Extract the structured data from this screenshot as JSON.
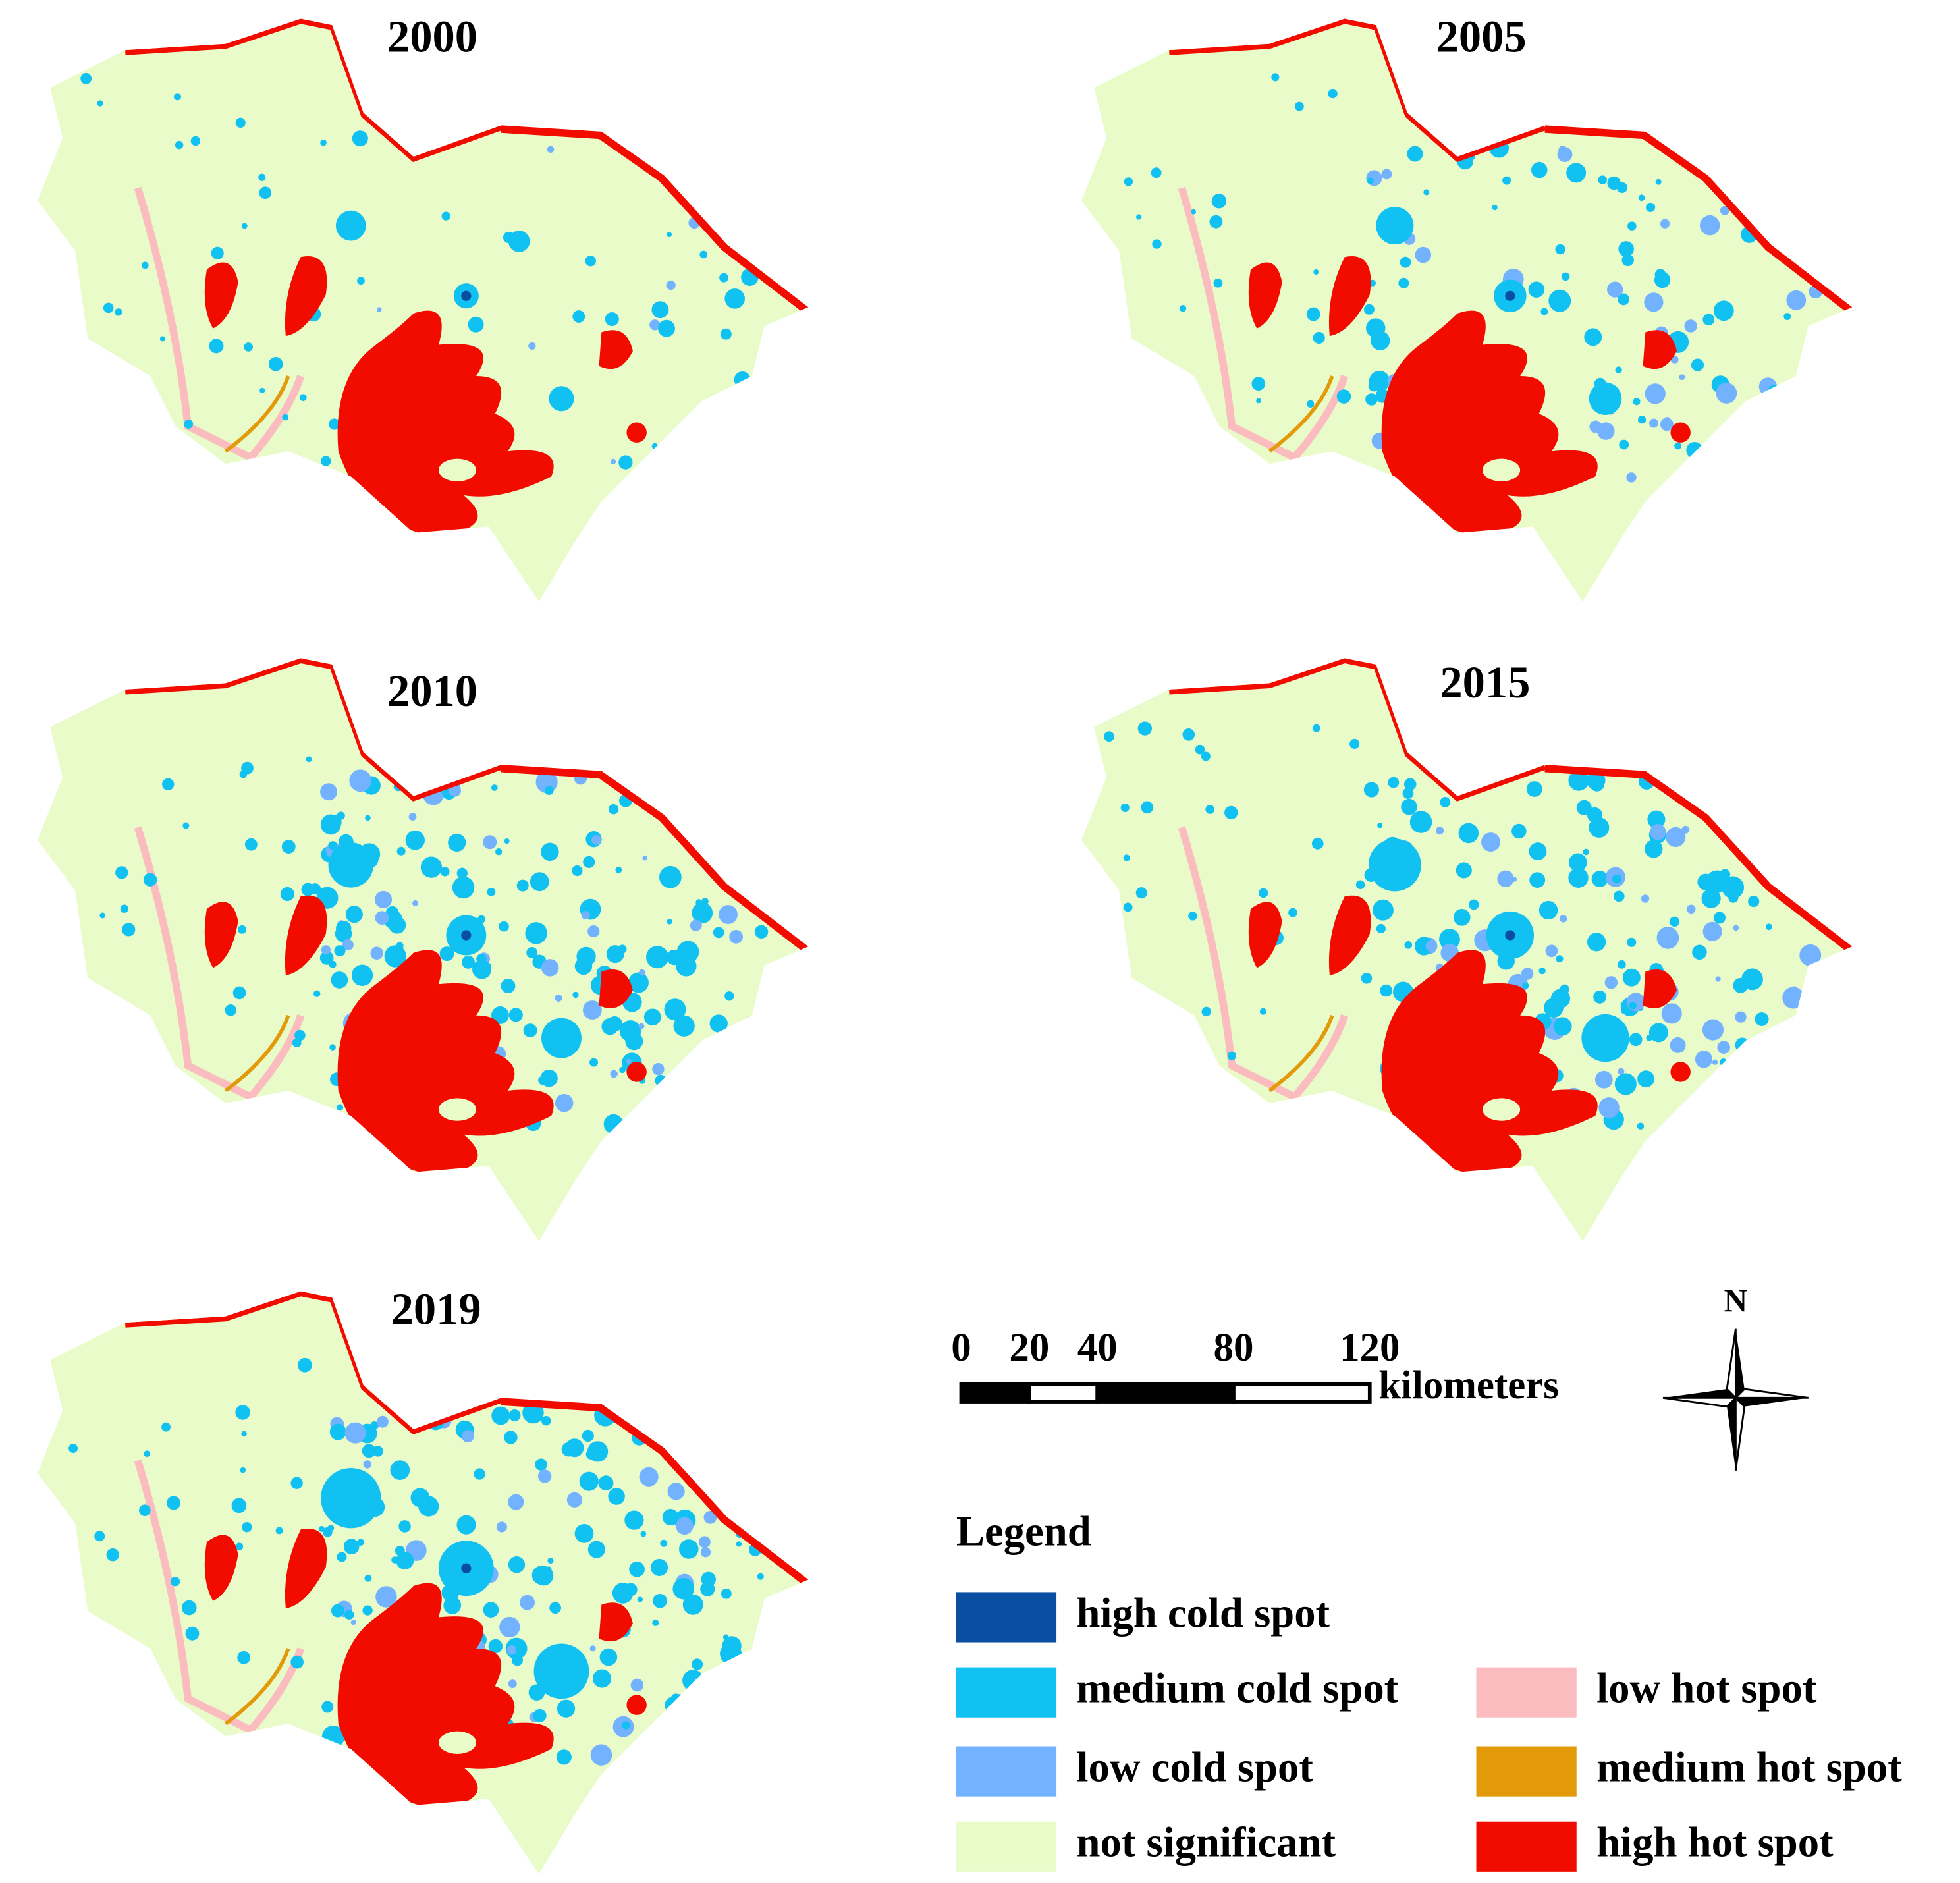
{
  "panels": [
    {
      "title": "2000"
    },
    {
      "title": "2005"
    },
    {
      "title": "2010"
    },
    {
      "title": "2015"
    },
    {
      "title": "2019"
    }
  ],
  "scale_bar": {
    "ticks": [
      0,
      20,
      40,
      80,
      120
    ],
    "unit": "kilometers"
  },
  "north_label": "N",
  "legend": {
    "title": "Legend",
    "items": [
      {
        "label": "high cold spot",
        "color": "#0a4ea2"
      },
      {
        "label": "medium cold spot",
        "color": "#11c1f2"
      },
      {
        "label": "low cold spot",
        "color": "#73b2ff"
      },
      {
        "label": "not significant",
        "color": "#e9fbc9"
      },
      {
        "label": "low hot spot",
        "color": "#fbbcbf"
      },
      {
        "label": "medium hot spot",
        "color": "#e39a08"
      },
      {
        "label": "high hot spot",
        "color": "#f20c00"
      }
    ]
  }
}
